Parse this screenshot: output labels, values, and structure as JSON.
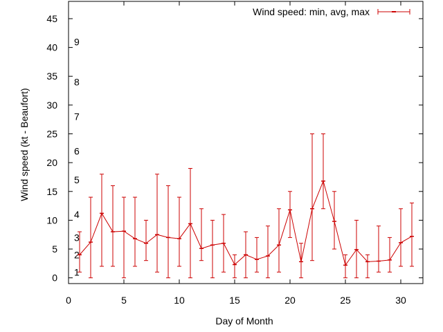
{
  "chart_data": {
    "type": "line",
    "xlabel": "Day of Month",
    "ylabel": "Wind speed (kt - Beaufort)",
    "xlim": [
      0,
      32
    ],
    "ylim": [
      -1,
      48
    ],
    "x_ticks": [
      0,
      5,
      10,
      15,
      20,
      25,
      30
    ],
    "y_ticks": [
      0,
      5,
      10,
      15,
      20,
      25,
      30,
      35,
      40,
      45
    ],
    "grid": false,
    "legend_position": "top-right",
    "beaufort_labels": [
      {
        "label": "1",
        "value": 1
      },
      {
        "label": "2",
        "value": 4
      },
      {
        "label": "3",
        "value": 7
      },
      {
        "label": "4",
        "value": 11
      },
      {
        "label": "5",
        "value": 17
      },
      {
        "label": "6",
        "value": 22
      },
      {
        "label": "7",
        "value": 28
      },
      {
        "label": "8",
        "value": 34
      },
      {
        "label": "9",
        "value": 41
      }
    ],
    "series": [
      {
        "name": "Wind speed: min, avg, max",
        "color": "#cc0000",
        "x": [
          1,
          2,
          3,
          4,
          5,
          6,
          7,
          8,
          9,
          10,
          11,
          12,
          13,
          14,
          15,
          16,
          17,
          18,
          19,
          20,
          21,
          22,
          23,
          24,
          25,
          26,
          27,
          28,
          29,
          30,
          31
        ],
        "avg": [
          4,
          6.2,
          11.2,
          8,
          8.1,
          6.8,
          6,
          7.5,
          7,
          6.8,
          9.4,
          5.1,
          5.7,
          6,
          2.3,
          4,
          3.2,
          3.8,
          5.7,
          11.8,
          2.8,
          12,
          16.8,
          9.8,
          2.2,
          4.9,
          2.8,
          2.9,
          3.1,
          6.1,
          7.2
        ],
        "min": [
          1,
          0,
          2,
          2,
          0,
          2,
          3,
          1,
          0,
          2,
          0,
          3,
          0,
          1,
          0,
          0,
          1,
          0,
          1,
          7,
          0,
          3,
          12,
          5,
          0,
          0,
          0,
          1,
          1,
          2,
          2
        ],
        "max": [
          8,
          14,
          18,
          16,
          14,
          14,
          10,
          18,
          16,
          14,
          19,
          12,
          10,
          11,
          4,
          8,
          7,
          9,
          12,
          15,
          6,
          25,
          25,
          15,
          4,
          10,
          4,
          9,
          7,
          12,
          13
        ]
      }
    ]
  }
}
